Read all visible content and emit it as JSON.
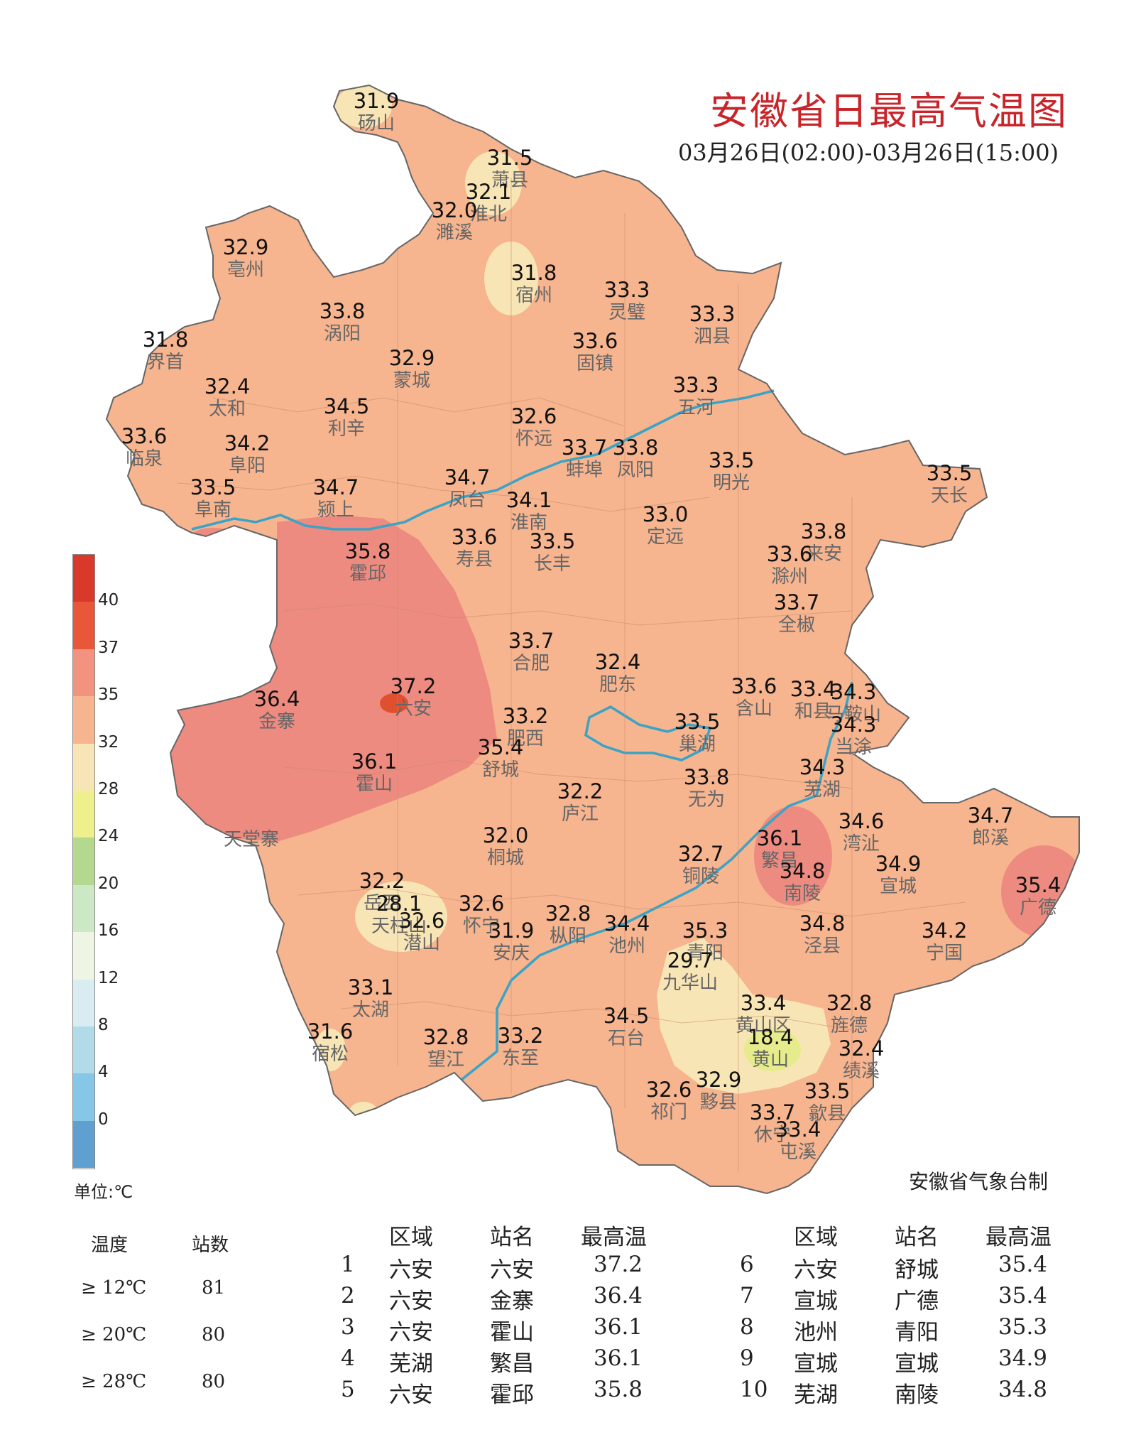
{
  "title": "安徽省日最高气温图",
  "subtitle": "03月26日(02:00)-03月26日(15:00)",
  "agency": "安徽省气象台制",
  "unit_label": "单位:℃",
  "map_label_extra": "天堂寨",
  "colors": {
    "base": "#f6b48f",
    "zone35": "#ed8b80",
    "zone37": "#e0502e",
    "zone28": "#f8e5b5",
    "zone24": "#e6eb8c",
    "border": "#666666",
    "river": "#3aa3c6"
  },
  "legend": {
    "colors": [
      "#d8392b",
      "#e8573a",
      "#f29380",
      "#f6b48f",
      "#f8e5b5",
      "#eef08e",
      "#b5d88f",
      "#cde8c5",
      "#eef5e5",
      "#d8ecf2",
      "#b1dbe9",
      "#86c6e6",
      "#5fa0d0"
    ],
    "ticks": [
      "40",
      "37",
      "35",
      "32",
      "28",
      "24",
      "20",
      "16",
      "12",
      "8",
      "4",
      "0"
    ]
  },
  "stats": {
    "header": {
      "temp": "温度",
      "count": "站数"
    },
    "rows": [
      {
        "label": "≥ 12℃",
        "count": "81"
      },
      {
        "label": "≥ 20℃",
        "count": "80"
      },
      {
        "label": "≥ 28℃",
        "count": "80"
      }
    ]
  },
  "table": {
    "headers": [
      "区域",
      "站名",
      "最高温"
    ],
    "rows": [
      {
        "rank": "1",
        "region": "六安",
        "station": "六安",
        "temp": "37.2"
      },
      {
        "rank": "2",
        "region": "六安",
        "station": "金寨",
        "temp": "36.4"
      },
      {
        "rank": "3",
        "region": "六安",
        "station": "霍山",
        "temp": "36.1"
      },
      {
        "rank": "4",
        "region": "芜湖",
        "station": "繁昌",
        "temp": "36.1"
      },
      {
        "rank": "5",
        "region": "六安",
        "station": "霍邱",
        "temp": "35.8"
      },
      {
        "rank": "6",
        "region": "六安",
        "station": "舒城",
        "temp": "35.4"
      },
      {
        "rank": "7",
        "region": "宣城",
        "station": "广德",
        "temp": "35.4"
      },
      {
        "rank": "8",
        "region": "池州",
        "station": "青阳",
        "temp": "35.3"
      },
      {
        "rank": "9",
        "region": "宣城",
        "station": "宣城",
        "temp": "34.9"
      },
      {
        "rank": "10",
        "region": "芜湖",
        "station": "南陵",
        "temp": "34.8"
      }
    ]
  },
  "stations": [
    {
      "name": "砀山",
      "value": "31.9"
    },
    {
      "name": "萧县",
      "value": "31.5"
    },
    {
      "name": "淮北",
      "value": "32.1"
    },
    {
      "name": "濉溪",
      "value": "32.0"
    },
    {
      "name": "亳州",
      "value": "32.9"
    },
    {
      "name": "宿州",
      "value": "31.8"
    },
    {
      "name": "灵璧",
      "value": "33.3"
    },
    {
      "name": "泗县",
      "value": "33.3"
    },
    {
      "name": "涡阳",
      "value": "33.8"
    },
    {
      "name": "界首",
      "value": "31.8"
    },
    {
      "name": "蒙城",
      "value": "32.9"
    },
    {
      "name": "固镇",
      "value": "33.6"
    },
    {
      "name": "太和",
      "value": "32.4"
    },
    {
      "name": "五河",
      "value": "33.3"
    },
    {
      "name": "利辛",
      "value": "34.5"
    },
    {
      "name": "怀远",
      "value": "32.6"
    },
    {
      "name": "临泉",
      "value": "33.6"
    },
    {
      "name": "阜阳",
      "value": "34.2"
    },
    {
      "name": "蚌埠",
      "value": "33.7"
    },
    {
      "name": "凤阳",
      "value": "33.8"
    },
    {
      "name": "明光",
      "value": "33.5"
    },
    {
      "name": "天长",
      "value": "33.5"
    },
    {
      "name": "阜南",
      "value": "33.5"
    },
    {
      "name": "颍上",
      "value": "34.7"
    },
    {
      "name": "凤台",
      "value": "34.7"
    },
    {
      "name": "淮南",
      "value": "34.1"
    },
    {
      "name": "定远",
      "value": "33.0"
    },
    {
      "name": "来安",
      "value": "33.8"
    },
    {
      "name": "霍邱",
      "value": "35.8"
    },
    {
      "name": "寿县",
      "value": "33.6"
    },
    {
      "name": "长丰",
      "value": "33.5"
    },
    {
      "name": "滁州",
      "value": "33.6"
    },
    {
      "name": "全椒",
      "value": "33.7"
    },
    {
      "name": "合肥",
      "value": "33.7"
    },
    {
      "name": "肥东",
      "value": "32.4"
    },
    {
      "name": "六安",
      "value": "37.2"
    },
    {
      "name": "金寨",
      "value": "36.4"
    },
    {
      "name": "含山",
      "value": "33.6"
    },
    {
      "name": "和县",
      "value": "33.4"
    },
    {
      "name": "马鞍山",
      "value": "34.3"
    },
    {
      "name": "肥西",
      "value": "33.2"
    },
    {
      "name": "巢湖",
      "value": "33.5"
    },
    {
      "name": "当涂",
      "value": "34.3"
    },
    {
      "name": "舒城",
      "value": "35.4"
    },
    {
      "name": "霍山",
      "value": "36.1"
    },
    {
      "name": "无为",
      "value": "33.8"
    },
    {
      "name": "芜湖",
      "value": "34.3"
    },
    {
      "name": "庐江",
      "value": "32.2"
    },
    {
      "name": "郎溪",
      "value": "34.7"
    },
    {
      "name": "繁昌",
      "value": "36.1"
    },
    {
      "name": "湾沚",
      "value": "34.6"
    },
    {
      "name": "桐城",
      "value": "32.0"
    },
    {
      "name": "铜陵",
      "value": "32.7"
    },
    {
      "name": "南陵",
      "value": "34.8"
    },
    {
      "name": "宣城",
      "value": "34.9"
    },
    {
      "name": "广德",
      "value": "35.4"
    },
    {
      "name": "岳西",
      "value": "32.2"
    },
    {
      "name": "天柱山",
      "value": "28.1"
    },
    {
      "name": "潜山",
      "value": "32.6"
    },
    {
      "name": "怀宁",
      "value": "32.6"
    },
    {
      "name": "枞阳",
      "value": "32.8"
    },
    {
      "name": "安庆",
      "value": "31.9"
    },
    {
      "name": "池州",
      "value": "34.4"
    },
    {
      "name": "青阳",
      "value": "35.3"
    },
    {
      "name": "泾县",
      "value": "34.8"
    },
    {
      "name": "宁国",
      "value": "34.2"
    },
    {
      "name": "九华山",
      "value": "29.7"
    },
    {
      "name": "太湖",
      "value": "33.1"
    },
    {
      "name": "黄山区",
      "value": "33.4"
    },
    {
      "name": "旌德",
      "value": "32.8"
    },
    {
      "name": "宿松",
      "value": "31.6"
    },
    {
      "name": "望江",
      "value": "32.8"
    },
    {
      "name": "东至",
      "value": "33.2"
    },
    {
      "name": "石台",
      "value": "34.5"
    },
    {
      "name": "黄山",
      "value": "18.4"
    },
    {
      "name": "绩溪",
      "value": "32.4"
    },
    {
      "name": "黟县",
      "value": "32.9"
    },
    {
      "name": "祁门",
      "value": "32.6"
    },
    {
      "name": "歙县",
      "value": "33.5"
    },
    {
      "name": "休宁",
      "value": "33.7"
    },
    {
      "name": "屯溪",
      "value": "33.4"
    }
  ]
}
